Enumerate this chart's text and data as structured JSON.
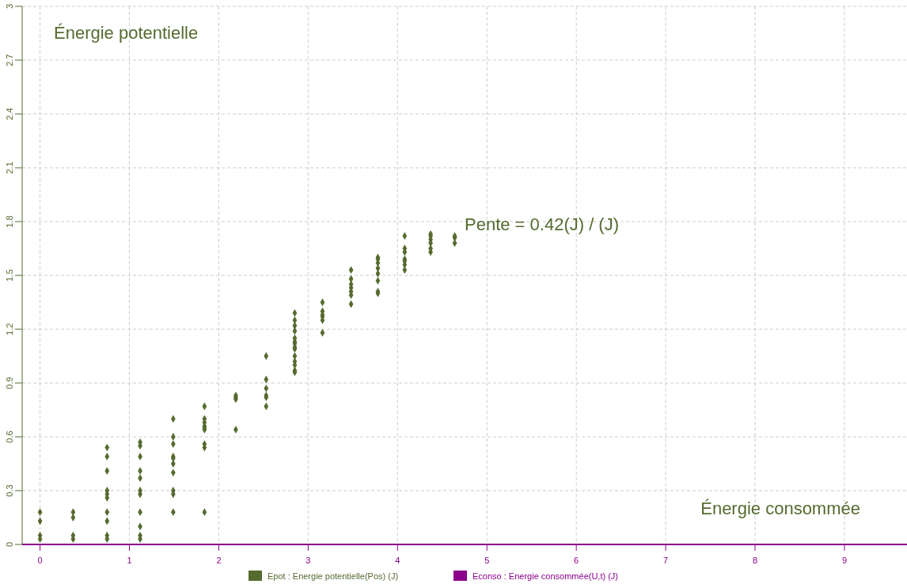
{
  "chart_data": {
    "type": "scatter",
    "xlabel": "Énergie consommée",
    "ylabel": "Énergie potentielle",
    "annotations": [
      "Pente = 0.42(J) / (J)"
    ],
    "xlim": [
      -0.2,
      9.7
    ],
    "xticks": [
      0,
      1,
      2,
      3,
      4,
      5,
      6,
      7,
      8,
      9
    ],
    "ylim": [
      0,
      3
    ],
    "yticks": [
      0,
      0.3,
      0.6,
      0.9,
      1.2,
      1.5,
      1.8,
      2.1,
      2.4,
      2.7,
      3
    ],
    "grid": true,
    "legend": "bottom",
    "marker": "diamond",
    "series": [
      {
        "name": "Epot : Energie potentielle(Pos) (J)",
        "color": "#556b2f",
        "x": [
          0,
          0,
          0,
          0,
          0.37,
          0.37,
          0.37,
          0.37,
          0.75,
          0.75,
          0.75,
          0.75,
          0.75,
          0.75,
          0.75,
          0.75,
          0.75,
          0.75,
          1.12,
          1.12,
          1.12,
          1.12,
          1.12,
          1.12,
          1.12,
          1.12,
          1.12,
          1.12,
          1.12,
          1.49,
          1.49,
          1.49,
          1.49,
          1.49,
          1.49,
          1.49,
          1.49,
          1.49,
          1.49,
          1.84,
          1.84,
          1.84,
          1.84,
          1.84,
          1.84,
          1.84,
          1.84,
          1.84,
          2.19,
          2.19,
          2.19,
          2.19,
          2.53,
          2.53,
          2.53,
          2.53,
          2.53,
          2.53,
          2.85,
          2.85,
          2.85,
          2.85,
          2.85,
          2.85,
          2.85,
          2.85,
          2.85,
          2.85,
          2.85,
          2.85,
          2.85,
          2.85,
          3.16,
          3.16,
          3.16,
          3.16,
          3.16,
          3.16,
          3.48,
          3.48,
          3.48,
          3.48,
          3.48,
          3.48,
          3.48,
          3.78,
          3.78,
          3.78,
          3.78,
          3.78,
          3.78,
          3.78,
          3.78,
          4.08,
          4.08,
          4.08,
          4.08,
          4.08,
          4.08,
          4.08,
          4.37,
          4.37,
          4.37,
          4.37,
          4.37,
          4.37,
          4.64,
          4.64,
          4.64
        ],
        "values": [
          0.18,
          0.13,
          0.05,
          0.03,
          0.18,
          0.15,
          0.05,
          0.03,
          0.54,
          0.49,
          0.41,
          0.3,
          0.28,
          0.26,
          0.18,
          0.13,
          0.05,
          0.03,
          0.57,
          0.55,
          0.49,
          0.41,
          0.37,
          0.3,
          0.28,
          0.18,
          0.1,
          0.05,
          0.03,
          0.7,
          0.6,
          0.56,
          0.49,
          0.48,
          0.45,
          0.4,
          0.3,
          0.28,
          0.18,
          0.77,
          0.7,
          0.68,
          0.66,
          0.65,
          0.64,
          0.56,
          0.54,
          0.18,
          0.83,
          0.82,
          0.81,
          0.64,
          1.05,
          0.92,
          0.87,
          0.83,
          0.82,
          0.77,
          1.29,
          1.25,
          1.22,
          1.19,
          1.15,
          1.13,
          1.12,
          1.1,
          1.09,
          1.05,
          1.02,
          1.0,
          0.97,
          0.96,
          1.35,
          1.3,
          1.28,
          1.27,
          1.25,
          1.18,
          1.53,
          1.48,
          1.45,
          1.43,
          1.41,
          1.39,
          1.34,
          1.6,
          1.59,
          1.57,
          1.54,
          1.51,
          1.47,
          1.41,
          1.4,
          1.72,
          1.65,
          1.63,
          1.59,
          1.58,
          1.56,
          1.53,
          1.73,
          1.72,
          1.7,
          1.68,
          1.65,
          1.63,
          1.72,
          1.71,
          1.68
        ]
      },
      {
        "name": "Econso : Energie consommée(U,t) (J)",
        "color": "#8b008b"
      }
    ]
  }
}
